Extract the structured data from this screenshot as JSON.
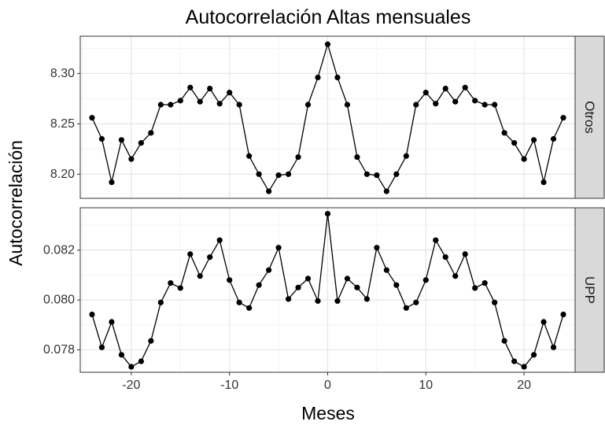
{
  "chart_data": {
    "type": "line",
    "title": "Autocorrelación Altas mensuales",
    "xlabel": "Meses",
    "ylabel": "Autocorrelación",
    "xlim": [
      -25.2,
      25.2
    ],
    "x_ticks": [
      -20,
      -10,
      0,
      10,
      20
    ],
    "x_tick_labels": [
      "-20",
      "-10",
      "0",
      "10",
      "20"
    ],
    "grid": true,
    "facets": [
      {
        "strip": "Otros",
        "ylim": [
          8.176,
          8.337
        ],
        "y_ticks": [
          8.2,
          8.25,
          8.3
        ],
        "y_tick_labels": [
          "8.20",
          "8.25",
          "8.30"
        ],
        "x": [
          -24,
          -23,
          -22,
          -21,
          -20,
          -19,
          -18,
          -17,
          -16,
          -15,
          -14,
          -13,
          -12,
          -11,
          -10,
          -9,
          -8,
          -7,
          -6,
          -5,
          -4,
          -3,
          -2,
          -1,
          0,
          1,
          2,
          3,
          4,
          5,
          6,
          7,
          8,
          9,
          10,
          11,
          12,
          13,
          14,
          15,
          16,
          17,
          18,
          19,
          20,
          21,
          22,
          23,
          24
        ],
        "y": [
          8.256,
          8.235,
          8.192,
          8.234,
          8.215,
          8.231,
          8.241,
          8.269,
          8.269,
          8.273,
          8.286,
          8.272,
          8.285,
          8.27,
          8.281,
          8.269,
          8.218,
          8.2,
          8.183,
          8.199,
          8.2,
          8.217,
          8.269,
          8.296,
          8.329,
          8.296,
          8.269,
          8.217,
          8.2,
          8.199,
          8.183,
          8.2,
          8.218,
          8.269,
          8.281,
          8.27,
          8.285,
          8.272,
          8.286,
          8.273,
          8.269,
          8.269,
          8.241,
          8.231,
          8.215,
          8.234,
          8.192,
          8.235,
          8.256
        ]
      },
      {
        "strip": "UPP",
        "ylim": [
          0.0771,
          0.0837
        ],
        "y_ticks": [
          0.078,
          0.08,
          0.082
        ],
        "y_tick_labels": [
          "0.078",
          "0.080",
          "0.082"
        ],
        "x": [
          -24,
          -23,
          -22,
          -21,
          -20,
          -19,
          -18,
          -17,
          -16,
          -15,
          -14,
          -13,
          -12,
          -11,
          -10,
          -9,
          -8,
          -7,
          -6,
          -5,
          -4,
          -3,
          -2,
          -1,
          0,
          1,
          2,
          3,
          4,
          5,
          6,
          7,
          8,
          9,
          10,
          11,
          12,
          13,
          14,
          15,
          16,
          17,
          18,
          19,
          20,
          21,
          22,
          23,
          24
        ],
        "y": [
          0.07942,
          0.0781,
          0.07912,
          0.0778,
          0.07732,
          0.07754,
          0.07836,
          0.0799,
          0.08068,
          0.08048,
          0.08184,
          0.08096,
          0.08172,
          0.0824,
          0.0808,
          0.0799,
          0.07968,
          0.0806,
          0.0812,
          0.0821,
          0.08004,
          0.0805,
          0.08086,
          0.07996,
          0.08346,
          0.07996,
          0.08086,
          0.0805,
          0.08004,
          0.0821,
          0.0812,
          0.0806,
          0.07968,
          0.0799,
          0.0808,
          0.0824,
          0.08172,
          0.08096,
          0.08184,
          0.08048,
          0.08068,
          0.0799,
          0.07836,
          0.07754,
          0.07732,
          0.0778,
          0.07912,
          0.0781,
          0.07942
        ]
      }
    ]
  }
}
